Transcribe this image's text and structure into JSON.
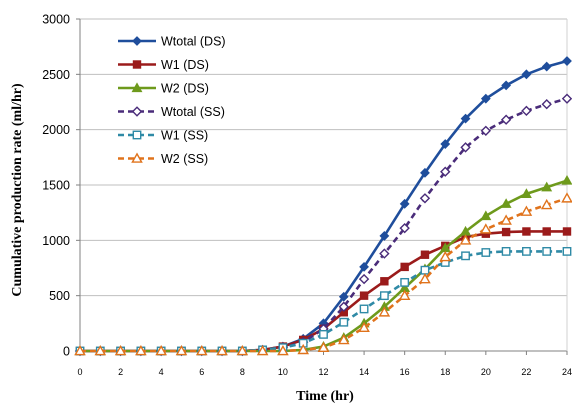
{
  "chart_data": {
    "type": "line",
    "title": "",
    "xlabel": "Time (hr)",
    "ylabel": "Cumulative production rate (ml/hr)",
    "xlim": [
      0,
      24
    ],
    "ylim": [
      0,
      3000
    ],
    "x_ticks": [
      0,
      2,
      4,
      6,
      8,
      10,
      12,
      14,
      16,
      18,
      20,
      22,
      24
    ],
    "y_ticks": [
      0,
      500,
      1000,
      1500,
      2000,
      2500,
      3000
    ],
    "grid": "horizontal",
    "legend_position": "top-left",
    "x": [
      0,
      1,
      2,
      3,
      4,
      5,
      6,
      7,
      8,
      9,
      10,
      11,
      12,
      13,
      14,
      15,
      16,
      17,
      18,
      19,
      20,
      21,
      22,
      23,
      24
    ],
    "series": [
      {
        "name": "Wtotal (DS)",
        "color": "#1f4e9c",
        "marker": "diamond-filled",
        "dashed": false,
        "values": [
          0,
          0,
          0,
          0,
          0,
          0,
          0,
          0,
          0,
          10,
          40,
          110,
          250,
          490,
          760,
          1040,
          1330,
          1610,
          1870,
          2100,
          2280,
          2400,
          2500,
          2570,
          2620
        ]
      },
      {
        "name": "W1 (DS)",
        "color": "#9b1b1b",
        "marker": "square-filled",
        "dashed": false,
        "values": [
          0,
          0,
          0,
          0,
          0,
          0,
          0,
          0,
          0,
          10,
          40,
          100,
          200,
          350,
          500,
          630,
          760,
          870,
          950,
          1030,
          1060,
          1075,
          1080,
          1080,
          1080
        ]
      },
      {
        "name": "W2 (DS)",
        "color": "#6e9a1c",
        "marker": "triangle-filled",
        "dashed": false,
        "values": [
          0,
          0,
          0,
          0,
          0,
          0,
          0,
          0,
          0,
          0,
          0,
          10,
          40,
          120,
          250,
          400,
          570,
          740,
          930,
          1080,
          1220,
          1330,
          1420,
          1480,
          1540
        ]
      },
      {
        "name": "Wtotal (SS)",
        "color": "#4a2c7a",
        "marker": "diamond-open",
        "dashed": true,
        "values": [
          0,
          0,
          0,
          0,
          0,
          0,
          0,
          0,
          0,
          10,
          30,
          80,
          200,
          400,
          650,
          880,
          1110,
          1380,
          1620,
          1840,
          1990,
          2090,
          2170,
          2230,
          2280
        ]
      },
      {
        "name": "W1 (SS)",
        "color": "#2f8aa6",
        "marker": "square-open",
        "dashed": true,
        "values": [
          0,
          0,
          0,
          0,
          0,
          0,
          0,
          0,
          0,
          10,
          30,
          70,
          150,
          260,
          380,
          500,
          620,
          730,
          800,
          860,
          890,
          900,
          900,
          900,
          900
        ]
      },
      {
        "name": "W2 (SS)",
        "color": "#e0731c",
        "marker": "triangle-open",
        "dashed": true,
        "values": [
          0,
          0,
          0,
          0,
          0,
          0,
          0,
          0,
          0,
          0,
          0,
          10,
          30,
          100,
          210,
          350,
          500,
          650,
          850,
          1000,
          1100,
          1180,
          1260,
          1320,
          1380
        ]
      }
    ]
  }
}
